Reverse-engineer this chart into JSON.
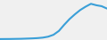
{
  "x": [
    0,
    1,
    2,
    3,
    4,
    5,
    6,
    7,
    8,
    9,
    10,
    11,
    12,
    13,
    14,
    15,
    16,
    17,
    18,
    19,
    20
  ],
  "y": [
    1.0,
    1.05,
    1.1,
    1.2,
    1.3,
    1.5,
    1.7,
    2.0,
    2.5,
    3.5,
    5.5,
    9.5,
    16.0,
    22.0,
    27.0,
    31.5,
    35.0,
    38.0,
    36.5,
    35.5,
    33.0
  ],
  "line_color": "#3a9fd8",
  "background_color": "#f0f0f0",
  "linewidth": 1.5,
  "xlim": [
    0,
    20
  ],
  "ylim": [
    0,
    42
  ]
}
